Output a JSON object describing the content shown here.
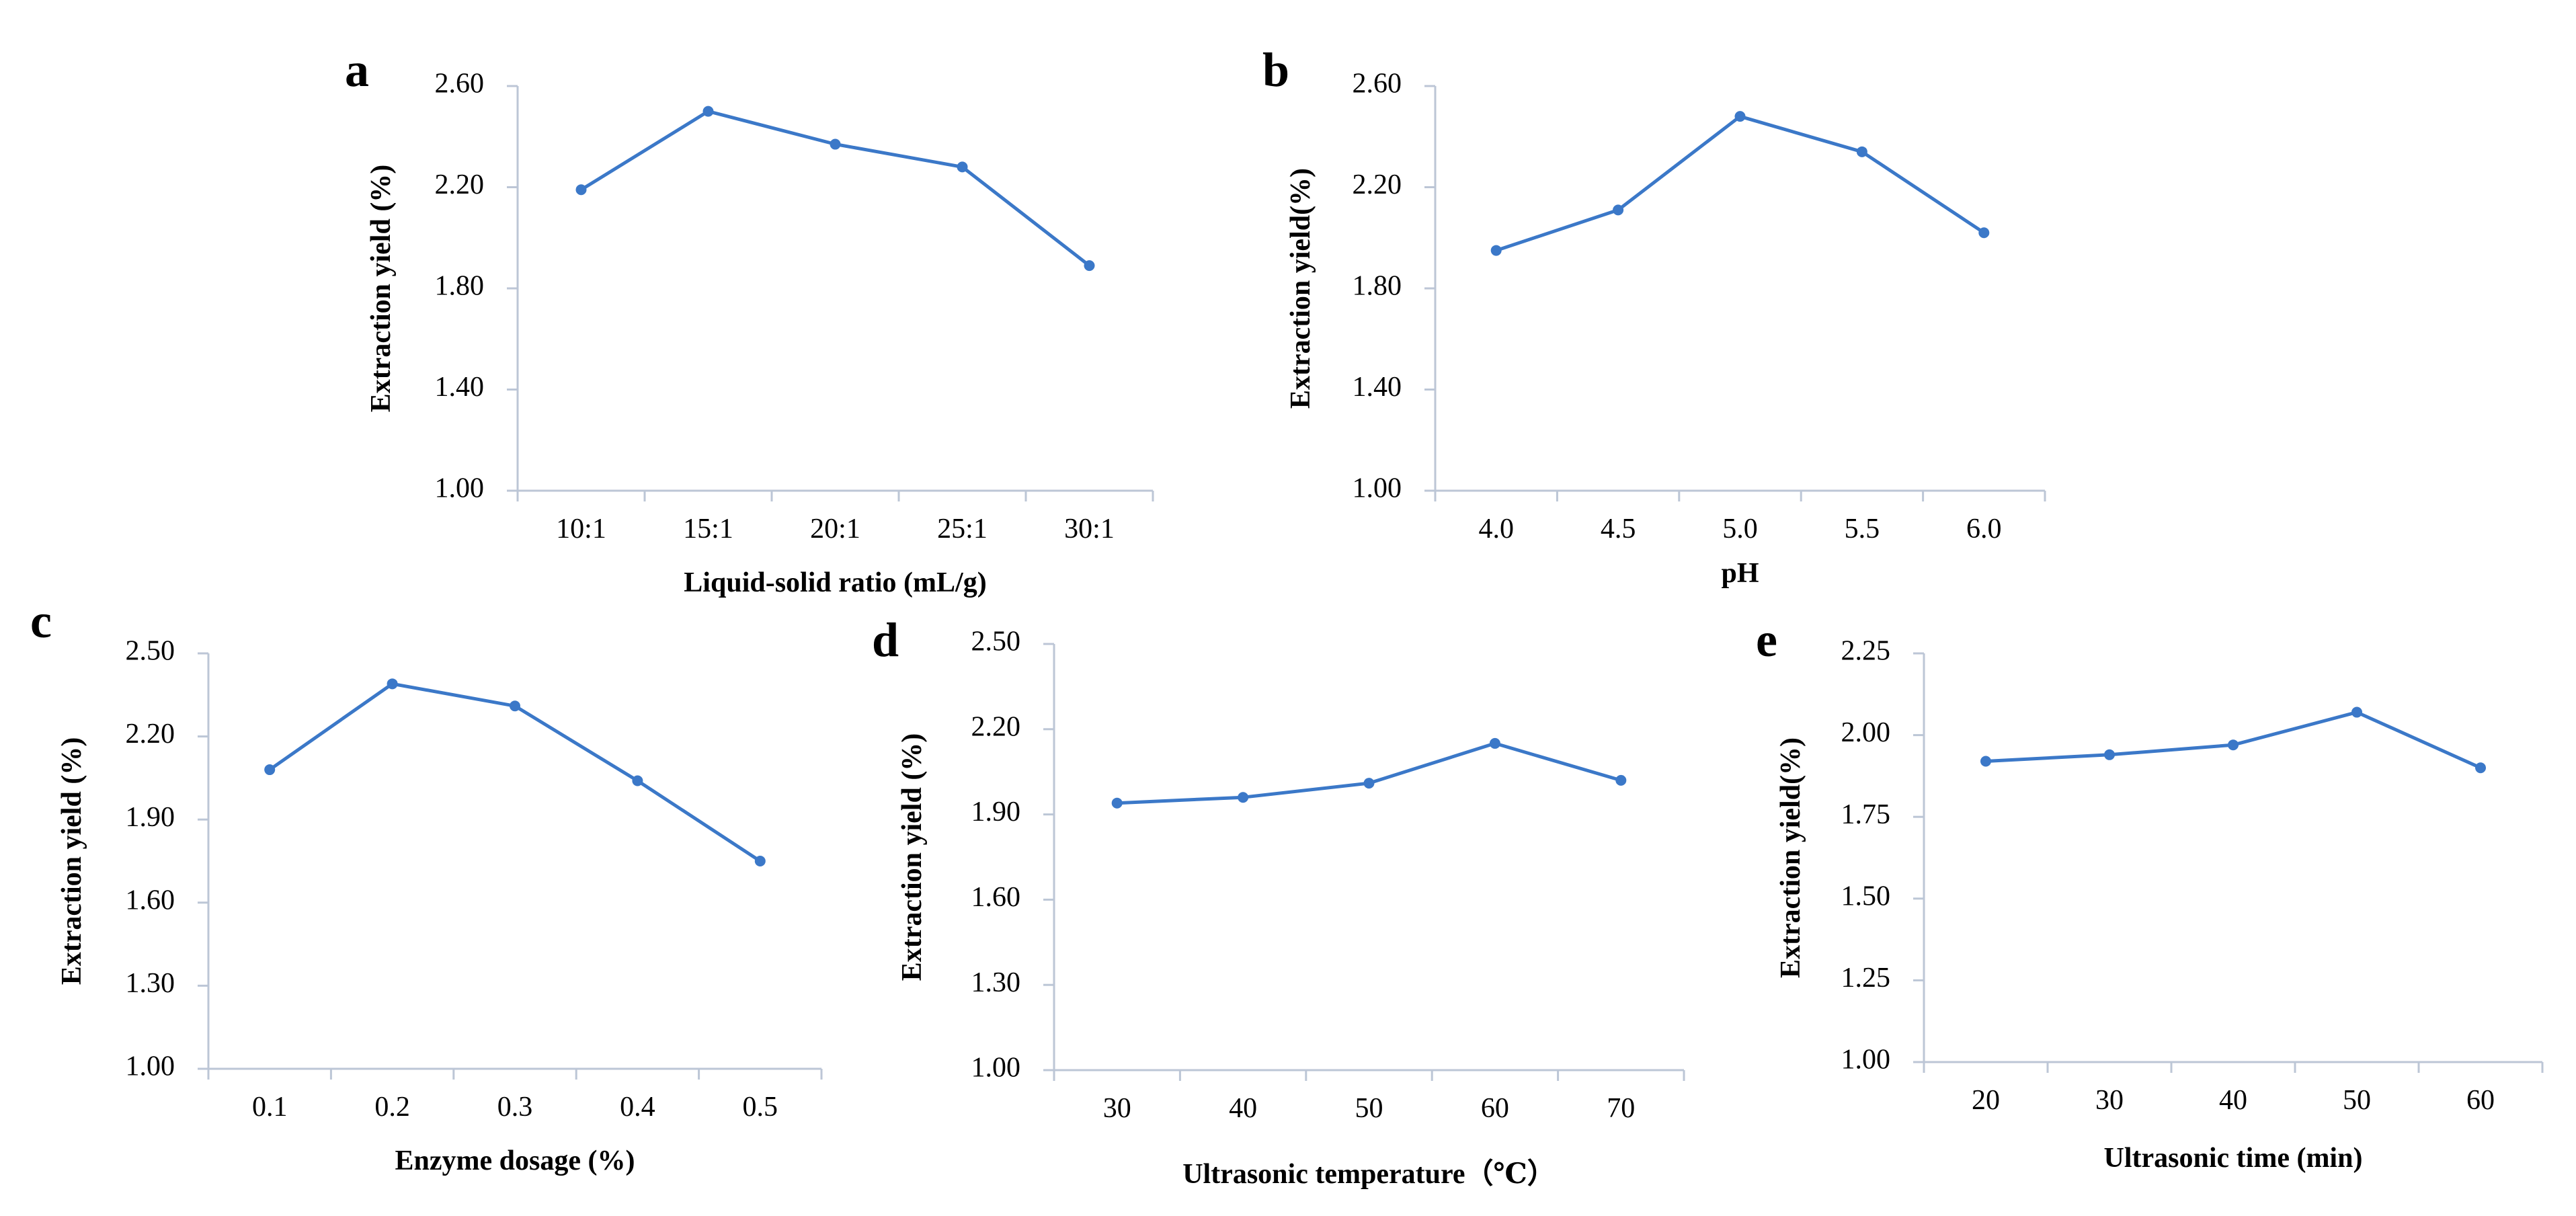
{
  "colors": {
    "series": "#3b78c8",
    "axis": "#bcc6d6",
    "text": "#000000"
  },
  "chart_data": [
    {
      "panel": "a",
      "type": "line",
      "categories": [
        "10:1",
        "15:1",
        "20:1",
        "25:1",
        "30:1"
      ],
      "values": [
        2.19,
        2.5,
        2.37,
        2.28,
        1.89
      ],
      "xlabel": "Liquid-solid ratio (mL/g)",
      "ylabel": "Extraction yield (%)",
      "ylim": [
        1.0,
        2.6
      ],
      "yticks": [
        "1.00",
        "1.40",
        "1.80",
        "2.20",
        "2.60"
      ],
      "grid": false
    },
    {
      "panel": "b",
      "type": "line",
      "categories": [
        "4.0",
        "4.5",
        "5.0",
        "5.5",
        "6.0"
      ],
      "values": [
        1.95,
        2.11,
        2.48,
        2.34,
        2.02
      ],
      "xlabel": "pH",
      "ylabel": "Extraction yield(%)",
      "ylim": [
        1.0,
        2.6
      ],
      "yticks": [
        "1.00",
        "1.40",
        "1.80",
        "2.20",
        "2.60"
      ],
      "grid": false
    },
    {
      "panel": "c",
      "type": "line",
      "categories": [
        "0.1",
        "0.2",
        "0.3",
        "0.4",
        "0.5"
      ],
      "values": [
        2.08,
        2.39,
        2.31,
        2.04,
        1.75
      ],
      "xlabel": "Enzyme dosage (%)",
      "ylabel": "Extraction yield (%)",
      "ylim": [
        1.0,
        2.5
      ],
      "yticks": [
        "1.00",
        "1.30",
        "1.60",
        "1.90",
        "2.20",
        "2.50"
      ],
      "grid": false
    },
    {
      "panel": "d",
      "type": "line",
      "categories": [
        "30",
        "40",
        "50",
        "60",
        "70"
      ],
      "values": [
        1.94,
        1.96,
        2.01,
        2.15,
        2.02
      ],
      "xlabel": "Ultrasonic temperature（℃）",
      "ylabel": "Extraction yield (%)",
      "ylim": [
        1.0,
        2.5
      ],
      "yticks": [
        "1.00",
        "1.30",
        "1.60",
        "1.90",
        "2.20",
        "2.50"
      ],
      "grid": false
    },
    {
      "panel": "e",
      "type": "line",
      "categories": [
        "20",
        "30",
        "40",
        "50",
        "60"
      ],
      "values": [
        1.92,
        1.94,
        1.97,
        2.07,
        1.9
      ],
      "xlabel": "Ultrasonic time (min)",
      "ylabel": "Extraction yield(%)",
      "ylim": [
        1.0,
        2.25
      ],
      "yticks": [
        "1.00",
        "1.25",
        "1.50",
        "1.75",
        "2.00",
        "2.25"
      ],
      "grid": false
    }
  ]
}
